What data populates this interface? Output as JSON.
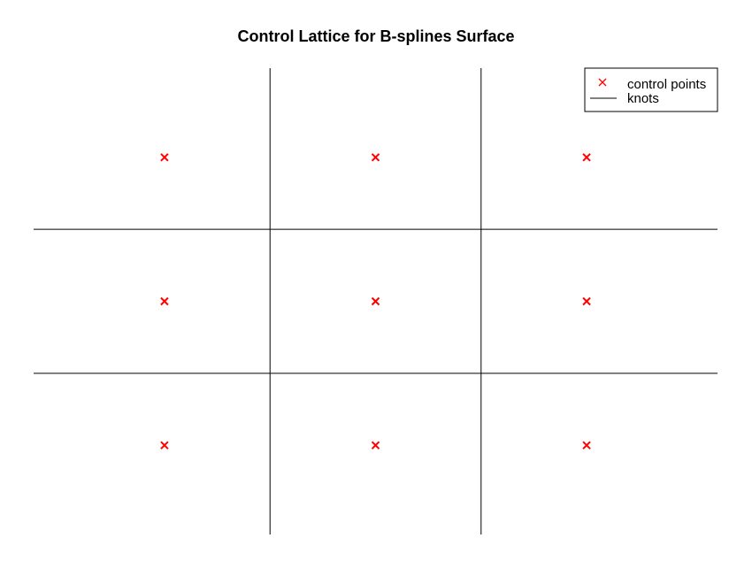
{
  "chart_data": {
    "type": "scatter",
    "title": "Control Lattice for B-splines Surface",
    "xlabel": "",
    "ylabel": "",
    "xlim": [
      0,
      3.24
    ],
    "ylim": [
      0,
      3.24
    ],
    "grid": false,
    "axes_visible": false,
    "legend": {
      "placement": "top-right",
      "entries": [
        {
          "label": "control points",
          "marker": "x",
          "color": "#ff0000"
        },
        {
          "label": "knots",
          "marker": "line",
          "color": "#000000"
        }
      ]
    },
    "series": [
      {
        "name": "control points",
        "marker": "x",
        "color": "#ff0000",
        "points": [
          {
            "x": 0.62,
            "y": 0.62
          },
          {
            "x": 1.62,
            "y": 0.62
          },
          {
            "x": 2.62,
            "y": 0.62
          },
          {
            "x": 0.62,
            "y": 1.62
          },
          {
            "x": 1.62,
            "y": 1.62
          },
          {
            "x": 2.62,
            "y": 1.62
          },
          {
            "x": 0.62,
            "y": 2.62
          },
          {
            "x": 1.62,
            "y": 2.62
          },
          {
            "x": 2.62,
            "y": 2.62
          }
        ]
      },
      {
        "name": "knots",
        "type": "lines",
        "color": "#000000",
        "vertical_at_x": [
          1.12,
          2.12
        ],
        "horizontal_at_y": [
          1.12,
          2.12
        ]
      }
    ]
  }
}
